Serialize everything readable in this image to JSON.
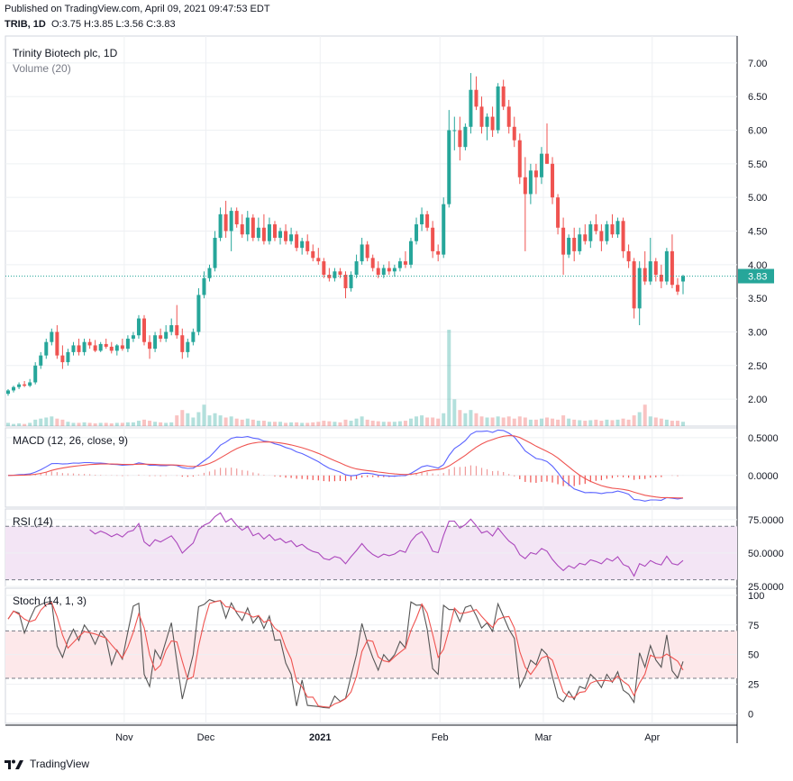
{
  "header": {
    "published": "Published on TradingView.com, April 09, 2021 09:47:53 EDT",
    "ohlc_symbol": "TRIB, 1D",
    "ohlc_values": "O:3.75 H:3.85 L:3.56 C:3.83"
  },
  "footer": {
    "brand": "TradingView"
  },
  "colors": {
    "up": "#26a69a",
    "down": "#ef5350",
    "macd_line": "#5a63ff",
    "signal_line": "#ef5350",
    "rsi_line": "#ab47bc",
    "rsi_band": "#f3e5f5",
    "stoch_k": "#555555",
    "stoch_d": "#ef5350",
    "stoch_band": "#fde8ea",
    "grid": "#eef0f3",
    "price_line": "#26a69a"
  },
  "chart_data": [
    {
      "type": "candlestick",
      "title": "Trinity Biotech plc, 1D",
      "subtitle": "Volume (20)",
      "last_price_label": "3.83",
      "x_labels": [
        "Nov",
        "Dec",
        "2021",
        "Feb",
        "Mar",
        "Apr"
      ],
      "y_ticks": [
        "7.00",
        "6.50",
        "6.00",
        "5.50",
        "5.00",
        "4.50",
        "4.00",
        "3.50",
        "3.00",
        "2.50",
        "2.00"
      ],
      "ylim": [
        1.6,
        7.4
      ],
      "candles": [
        [
          2.08,
          2.15,
          2.05,
          2.13
        ],
        [
          2.13,
          2.2,
          2.1,
          2.18
        ],
        [
          2.18,
          2.25,
          2.15,
          2.22
        ],
        [
          2.22,
          2.27,
          2.18,
          2.2
        ],
        [
          2.2,
          2.3,
          2.18,
          2.25
        ],
        [
          2.25,
          2.55,
          2.22,
          2.5
        ],
        [
          2.5,
          2.7,
          2.45,
          2.65
        ],
        [
          2.65,
          2.9,
          2.6,
          2.85
        ],
        [
          2.85,
          3.05,
          2.8,
          3.0
        ],
        [
          3.0,
          3.1,
          2.6,
          2.65
        ],
        [
          2.65,
          2.8,
          2.45,
          2.55
        ],
        [
          2.55,
          2.75,
          2.5,
          2.7
        ],
        [
          2.7,
          2.85,
          2.65,
          2.8
        ],
        [
          2.8,
          2.9,
          2.65,
          2.7
        ],
        [
          2.7,
          2.9,
          2.65,
          2.85
        ],
        [
          2.85,
          2.9,
          2.75,
          2.8
        ],
        [
          2.8,
          2.88,
          2.7,
          2.72
        ],
        [
          2.72,
          2.85,
          2.7,
          2.82
        ],
        [
          2.82,
          2.9,
          2.75,
          2.78
        ],
        [
          2.78,
          2.85,
          2.68,
          2.72
        ],
        [
          2.72,
          2.82,
          2.65,
          2.8
        ],
        [
          2.8,
          2.9,
          2.72,
          2.75
        ],
        [
          2.75,
          2.95,
          2.7,
          2.9
        ],
        [
          2.9,
          3.0,
          2.85,
          2.95
        ],
        [
          2.95,
          3.25,
          2.9,
          3.2
        ],
        [
          3.2,
          3.25,
          2.8,
          2.85
        ],
        [
          2.85,
          2.95,
          2.6,
          2.75
        ],
        [
          2.75,
          3.0,
          2.7,
          2.95
        ],
        [
          2.95,
          3.05,
          2.85,
          2.9
        ],
        [
          2.9,
          3.1,
          2.85,
          3.0
        ],
        [
          3.0,
          3.2,
          2.95,
          3.1
        ],
        [
          3.1,
          3.4,
          2.9,
          2.95
        ],
        [
          2.95,
          3.05,
          2.6,
          2.7
        ],
        [
          2.7,
          2.9,
          2.62,
          2.85
        ],
        [
          2.85,
          3.05,
          2.8,
          3.0
        ],
        [
          3.0,
          3.65,
          2.95,
          3.55
        ],
        [
          3.55,
          3.9,
          3.5,
          3.8
        ],
        [
          3.8,
          4.0,
          3.75,
          3.95
        ],
        [
          3.95,
          4.5,
          3.9,
          4.4
        ],
        [
          4.4,
          4.85,
          4.35,
          4.75
        ],
        [
          4.75,
          4.95,
          4.4,
          4.5
        ],
        [
          4.5,
          4.85,
          4.2,
          4.8
        ],
        [
          4.8,
          4.85,
          4.55,
          4.6
        ],
        [
          4.6,
          4.75,
          4.4,
          4.45
        ],
        [
          4.45,
          4.8,
          4.35,
          4.7
        ],
        [
          4.7,
          4.75,
          4.35,
          4.4
        ],
        [
          4.4,
          4.7,
          4.35,
          4.55
        ],
        [
          4.55,
          4.75,
          4.3,
          4.35
        ],
        [
          4.35,
          4.7,
          4.3,
          4.6
        ],
        [
          4.6,
          4.65,
          4.35,
          4.4
        ],
        [
          4.4,
          4.55,
          4.3,
          4.5
        ],
        [
          4.5,
          4.6,
          4.3,
          4.35
        ],
        [
          4.35,
          4.55,
          4.3,
          4.45
        ],
        [
          4.45,
          4.5,
          4.2,
          4.25
        ],
        [
          4.25,
          4.4,
          4.15,
          4.35
        ],
        [
          4.35,
          4.45,
          4.15,
          4.2
        ],
        [
          4.2,
          4.3,
          4.05,
          4.1
        ],
        [
          4.1,
          4.25,
          4.0,
          4.05
        ],
        [
          4.05,
          4.1,
          3.8,
          3.85
        ],
        [
          3.85,
          3.95,
          3.75,
          3.8
        ],
        [
          3.8,
          3.95,
          3.75,
          3.9
        ],
        [
          3.9,
          3.95,
          3.8,
          3.85
        ],
        [
          3.85,
          3.9,
          3.5,
          3.65
        ],
        [
          3.65,
          3.9,
          3.6,
          3.85
        ],
        [
          3.85,
          4.15,
          3.8,
          4.05
        ],
        [
          4.05,
          4.4,
          4.0,
          4.3
        ],
        [
          4.3,
          4.35,
          4.05,
          4.1
        ],
        [
          4.1,
          4.15,
          3.9,
          3.95
        ],
        [
          3.95,
          4.05,
          3.8,
          3.85
        ],
        [
          3.85,
          4.0,
          3.8,
          3.95
        ],
        [
          3.95,
          4.05,
          3.85,
          3.9
        ],
        [
          3.9,
          4.0,
          3.82,
          3.95
        ],
        [
          3.95,
          4.1,
          3.9,
          4.05
        ],
        [
          4.05,
          4.2,
          3.95,
          4.0
        ],
        [
          4.0,
          4.4,
          3.95,
          4.35
        ],
        [
          4.35,
          4.7,
          4.3,
          4.6
        ],
        [
          4.6,
          4.85,
          4.5,
          4.75
        ],
        [
          4.75,
          4.8,
          4.5,
          4.55
        ],
        [
          4.55,
          4.65,
          4.1,
          4.2
        ],
        [
          4.2,
          4.3,
          4.05,
          4.15
        ],
        [
          4.15,
          5.0,
          4.1,
          4.9
        ],
        [
          4.9,
          6.3,
          4.85,
          6.0
        ],
        [
          6.0,
          6.2,
          5.7,
          6.0
        ],
        [
          6.0,
          6.2,
          5.55,
          5.75
        ],
        [
          5.75,
          6.1,
          5.7,
          6.05
        ],
        [
          6.05,
          6.85,
          5.95,
          6.6
        ],
        [
          6.6,
          6.8,
          6.3,
          6.35
        ],
        [
          6.35,
          6.5,
          5.95,
          6.05
        ],
        [
          6.05,
          6.25,
          5.85,
          6.2
        ],
        [
          6.2,
          6.35,
          5.9,
          6.0
        ],
        [
          6.0,
          6.7,
          5.95,
          6.65
        ],
        [
          6.65,
          6.75,
          6.3,
          6.35
        ],
        [
          6.35,
          6.45,
          5.95,
          6.05
        ],
        [
          6.05,
          6.2,
          5.75,
          5.85
        ],
        [
          5.85,
          5.95,
          5.2,
          5.3
        ],
        [
          5.3,
          5.6,
          4.2,
          5.05
        ],
        [
          5.05,
          5.5,
          4.9,
          5.4
        ],
        [
          5.4,
          5.5,
          5.05,
          5.3
        ],
        [
          5.3,
          5.75,
          5.2,
          5.65
        ],
        [
          5.65,
          6.1,
          5.5,
          5.5
        ],
        [
          5.5,
          5.6,
          4.9,
          5.0
        ],
        [
          5.0,
          5.05,
          4.45,
          4.55
        ],
        [
          4.55,
          4.7,
          3.85,
          4.15
        ],
        [
          4.15,
          4.45,
          4.1,
          4.4
        ],
        [
          4.4,
          4.55,
          4.05,
          4.2
        ],
        [
          4.2,
          4.55,
          4.15,
          4.45
        ],
        [
          4.45,
          4.6,
          4.3,
          4.35
        ],
        [
          4.35,
          4.65,
          4.25,
          4.6
        ],
        [
          4.6,
          4.75,
          4.45,
          4.5
        ],
        [
          4.5,
          4.6,
          4.2,
          4.35
        ],
        [
          4.35,
          4.65,
          4.3,
          4.6
        ],
        [
          4.6,
          4.75,
          4.4,
          4.45
        ],
        [
          4.45,
          4.7,
          4.4,
          4.65
        ],
        [
          4.65,
          4.7,
          4.1,
          4.2
        ],
        [
          4.2,
          4.3,
          3.95,
          4.05
        ],
        [
          4.05,
          4.1,
          3.2,
          3.35
        ],
        [
          3.35,
          4.05,
          3.1,
          3.95
        ],
        [
          3.95,
          4.2,
          3.7,
          3.75
        ],
        [
          3.75,
          4.4,
          3.7,
          4.05
        ],
        [
          4.05,
          4.1,
          3.75,
          3.85
        ],
        [
          3.85,
          4.0,
          3.65,
          3.75
        ],
        [
          3.75,
          4.25,
          3.7,
          4.2
        ],
        [
          4.2,
          4.45,
          3.65,
          3.7
        ],
        [
          3.7,
          3.8,
          3.55,
          3.6
        ],
        [
          3.75,
          3.85,
          3.56,
          3.83
        ]
      ],
      "volume": [
        0.3,
        0.2,
        0.25,
        0.2,
        0.3,
        0.6,
        0.7,
        0.8,
        0.9,
        0.7,
        0.6,
        0.4,
        0.3,
        0.3,
        0.35,
        0.3,
        0.25,
        0.3,
        0.3,
        0.25,
        0.3,
        0.3,
        0.35,
        0.35,
        0.5,
        0.6,
        0.5,
        0.4,
        0.35,
        0.3,
        0.35,
        1.0,
        1.5,
        1.2,
        0.8,
        1.3,
        2.0,
        1.0,
        1.2,
        1.0,
        0.8,
        0.9,
        0.7,
        0.6,
        0.7,
        0.6,
        0.5,
        0.5,
        0.4,
        0.4,
        0.4,
        0.3,
        0.35,
        0.35,
        0.3,
        0.3,
        0.35,
        0.4,
        0.5,
        0.45,
        0.4,
        0.35,
        0.6,
        0.5,
        0.7,
        0.9,
        0.6,
        0.5,
        0.45,
        0.4,
        0.4,
        0.4,
        0.45,
        0.5,
        0.7,
        0.9,
        1.0,
        0.8,
        0.8,
        0.7,
        1.2,
        9.0,
        2.5,
        1.5,
        1.2,
        1.5,
        1.2,
        0.9,
        0.8,
        0.8,
        0.9,
        0.8,
        0.9,
        0.7,
        0.9,
        0.8,
        0.6,
        0.6,
        0.7,
        0.8,
        0.7,
        0.6,
        1.0,
        0.7,
        0.6,
        0.55,
        0.5,
        0.55,
        0.6,
        0.5,
        0.6,
        0.55,
        0.6,
        0.7,
        0.6,
        1.0,
        1.3,
        2.0,
        0.9,
        0.8,
        0.7,
        0.6,
        0.5,
        0.5,
        0.4
      ]
    },
    {
      "type": "line",
      "title": "MACD (12, 26, close, 9)",
      "y_ticks": [
        "0.5000",
        "0.0000"
      ],
      "ylim": [
        -0.42,
        0.63
      ]
    },
    {
      "type": "line",
      "title": "RSI (14)",
      "y_ticks": [
        "75.0000",
        "50.0000",
        "25.0000"
      ],
      "ylim": [
        25,
        83
      ],
      "band": [
        30,
        70
      ]
    },
    {
      "type": "line",
      "title": "Stoch (14, 1, 3)",
      "y_ticks": [
        "100",
        "75",
        "50",
        "25",
        "0"
      ],
      "ylim": [
        -8,
        106
      ],
      "band": [
        30,
        70
      ]
    }
  ]
}
